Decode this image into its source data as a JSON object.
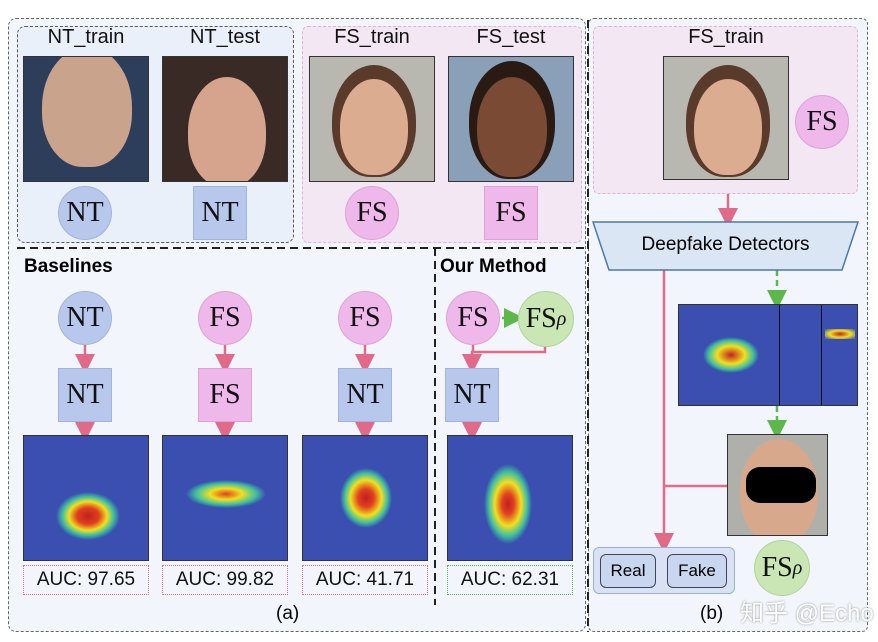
{
  "panel_a": {
    "top_labels": [
      "NT_train",
      "NT_test",
      "FS_train",
      "FS_test"
    ],
    "top_tokens": [
      "NT",
      "NT",
      "FS",
      "FS"
    ],
    "baselines_title": "Baselines",
    "our_method_title": "Our Method",
    "columns": [
      {
        "source": "NT",
        "target": "NT",
        "auc": "AUC: 97.65"
      },
      {
        "source": "FS",
        "target": "FS",
        "auc": "AUC: 99.82"
      },
      {
        "source": "FS",
        "target": "NT",
        "auc": "AUC: 41.71"
      }
    ],
    "our_method": {
      "source": "FS",
      "augmented": "FS",
      "augmented_sub": "ρ",
      "target": "NT",
      "auc": "AUC: 62.31"
    },
    "caption": "(a)"
  },
  "panel_b": {
    "label": "FS_train",
    "token": "FS",
    "detector": "Deepfake Detectors",
    "outputs": [
      "Real",
      "Fake"
    ],
    "augmented": "FS",
    "augmented_sub": "ρ",
    "caption": "(b)"
  },
  "watermark": "知乎 @Echo",
  "colors": {
    "nt": "#b8c8ec",
    "fs": "#eeb8ea",
    "fs_rho": "#c9e6b4",
    "arrow": "#e06a88",
    "green_arrow": "#5cb84a"
  }
}
